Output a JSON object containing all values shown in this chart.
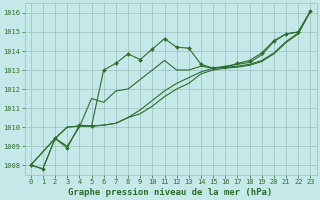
{
  "title": "Graphe pression niveau de la mer (hPa)",
  "background_color": "#c5e8e8",
  "grid_color": "#9abebe",
  "line_color": "#2d6e2d",
  "xlim": [
    -0.5,
    23.5
  ],
  "ylim": [
    1007.5,
    1016.5
  ],
  "yticks": [
    1008,
    1009,
    1010,
    1011,
    1012,
    1013,
    1014,
    1015,
    1016
  ],
  "xticks": [
    0,
    1,
    2,
    3,
    4,
    5,
    6,
    7,
    8,
    9,
    10,
    11,
    12,
    13,
    14,
    15,
    16,
    17,
    18,
    19,
    20,
    21,
    22,
    23
  ],
  "lines": [
    {
      "x": [
        0,
        1,
        2,
        3,
        4,
        5,
        6,
        7,
        8,
        9,
        10,
        11,
        12,
        13,
        14,
        15,
        16,
        17,
        18,
        19,
        20,
        21,
        22,
        23
      ],
      "y": [
        1008.0,
        1007.8,
        1009.4,
        1008.9,
        1010.1,
        1010.05,
        1013.0,
        1013.35,
        1013.85,
        1013.55,
        1014.1,
        1014.65,
        1014.2,
        1014.15,
        1013.3,
        1013.1,
        1013.15,
        1013.35,
        1013.5,
        1013.9,
        1014.55,
        1014.9,
        1015.0,
        1016.1
      ],
      "has_markers": true
    },
    {
      "x": [
        0,
        1,
        2,
        3,
        4,
        5,
        6,
        7,
        8,
        9,
        10,
        11,
        12,
        13,
        14,
        15,
        16,
        17,
        18,
        19,
        20,
        21,
        22,
        23
      ],
      "y": [
        1008.0,
        1007.8,
        1009.4,
        1009.0,
        1010.0,
        1011.5,
        1011.3,
        1011.9,
        1012.0,
        1012.5,
        1013.0,
        1013.5,
        1013.0,
        1013.0,
        1013.2,
        1013.1,
        1013.2,
        1013.3,
        1013.4,
        1013.8,
        1014.5,
        1014.9,
        1015.0,
        1016.1
      ],
      "has_markers": false
    },
    {
      "x": [
        0,
        2,
        3,
        4,
        5,
        6,
        7,
        8,
        9,
        10,
        11,
        12,
        13,
        14,
        15,
        16,
        17,
        18,
        19,
        20,
        21,
        22,
        23
      ],
      "y": [
        1008.0,
        1009.4,
        1010.0,
        1010.05,
        1010.05,
        1010.1,
        1010.2,
        1010.5,
        1010.9,
        1011.4,
        1011.9,
        1012.3,
        1012.6,
        1012.9,
        1013.1,
        1013.15,
        1013.2,
        1013.3,
        1013.5,
        1013.9,
        1014.5,
        1014.95,
        1016.1
      ],
      "has_markers": false
    },
    {
      "x": [
        0,
        2,
        3,
        4,
        5,
        6,
        7,
        8,
        9,
        10,
        11,
        12,
        13,
        14,
        15,
        16,
        17,
        18,
        19,
        20,
        21,
        22,
        23
      ],
      "y": [
        1008.0,
        1009.4,
        1010.0,
        1010.05,
        1010.05,
        1010.1,
        1010.2,
        1010.5,
        1010.7,
        1011.1,
        1011.6,
        1012.0,
        1012.3,
        1012.8,
        1013.0,
        1013.1,
        1013.15,
        1013.25,
        1013.45,
        1013.85,
        1014.45,
        1014.9,
        1016.1
      ],
      "has_markers": false
    }
  ],
  "marker": "D",
  "marker_size": 2.0,
  "linewidth": 0.8,
  "tick_fontsize": 5.0,
  "label_fontsize": 6.5
}
